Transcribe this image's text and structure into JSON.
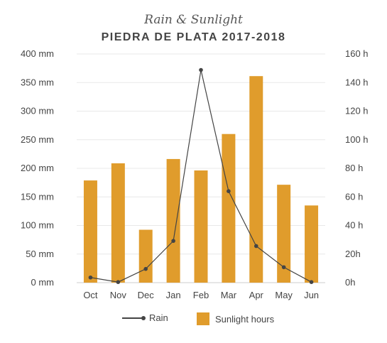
{
  "chart_data": {
    "type": "bar",
    "title": "Rain & Sunlight",
    "subtitle": "PIEDRA DE PLATA 2017-2018",
    "categories": [
      "Oct",
      "Nov",
      "Dec",
      "Jan",
      "Feb",
      "Mar",
      "Apr",
      "May",
      "Jun"
    ],
    "series": [
      {
        "name": "Rain",
        "kind": "line",
        "axis": "left",
        "color": "#444444",
        "values": [
          9,
          1,
          24,
          73,
          372,
          160,
          64,
          27,
          1
        ]
      },
      {
        "name": "Sunlight hours",
        "kind": "bar",
        "axis": "right",
        "color": "#e09c2c",
        "values": [
          71.5,
          83.5,
          37,
          86.5,
          78.5,
          104,
          144.5,
          68.5,
          54
        ]
      }
    ],
    "left_axis": {
      "ylim": [
        0,
        400
      ],
      "ticks": [
        "0 mm",
        "50 mm",
        "100 mm",
        "150 mm",
        "200 mm",
        "250 mm",
        "300 mm",
        "350 mm",
        "400 mm"
      ]
    },
    "right_axis": {
      "ylim": [
        0,
        160
      ],
      "ticks": [
        "0h",
        "20h",
        "40 h",
        "60 h",
        "80 h",
        "100 h",
        "120 h",
        "140 h",
        "160 h"
      ]
    },
    "grid": true,
    "legend_position": "bottom"
  }
}
